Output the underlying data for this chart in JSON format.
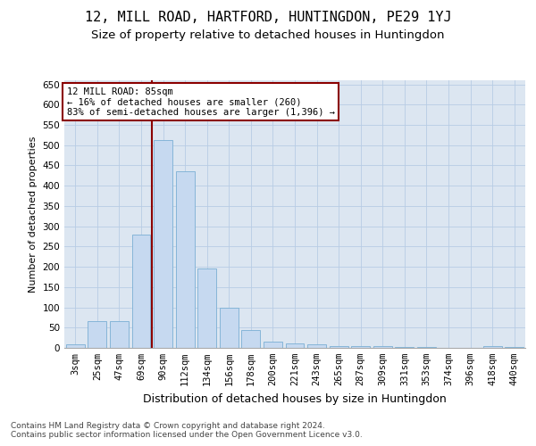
{
  "title1": "12, MILL ROAD, HARTFORD, HUNTINGDON, PE29 1YJ",
  "title2": "Size of property relative to detached houses in Huntingdon",
  "xlabel": "Distribution of detached houses by size in Huntingdon",
  "ylabel": "Number of detached properties",
  "categories": [
    "3sqm",
    "25sqm",
    "47sqm",
    "69sqm",
    "90sqm",
    "112sqm",
    "134sqm",
    "156sqm",
    "178sqm",
    "200sqm",
    "221sqm",
    "243sqm",
    "265sqm",
    "287sqm",
    "309sqm",
    "331sqm",
    "353sqm",
    "374sqm",
    "396sqm",
    "418sqm",
    "440sqm"
  ],
  "values": [
    8,
    65,
    65,
    280,
    513,
    435,
    195,
    100,
    45,
    15,
    10,
    8,
    5,
    5,
    4,
    3,
    3,
    1,
    0,
    4,
    3
  ],
  "bar_color": "#c6d9f0",
  "bar_edge_color": "#7bafd4",
  "vline_x": 3.5,
  "vline_color": "#8b0000",
  "annotation_box_text": "12 MILL ROAD: 85sqm\n← 16% of detached houses are smaller (260)\n83% of semi-detached houses are larger (1,396) →",
  "annotation_box_color": "#8b0000",
  "annotation_box_facecolor": "white",
  "ylim": [
    0,
    660
  ],
  "yticks": [
    0,
    50,
    100,
    150,
    200,
    250,
    300,
    350,
    400,
    450,
    500,
    550,
    600,
    650
  ],
  "grid_color": "#b8cce4",
  "background_color": "#dce6f1",
  "footer1": "Contains HM Land Registry data © Crown copyright and database right 2024.",
  "footer2": "Contains public sector information licensed under the Open Government Licence v3.0.",
  "title1_fontsize": 11,
  "title2_fontsize": 9.5,
  "xlabel_fontsize": 9,
  "ylabel_fontsize": 8,
  "tick_fontsize": 7.5,
  "footer_fontsize": 6.5,
  "ann_fontsize": 7.5
}
